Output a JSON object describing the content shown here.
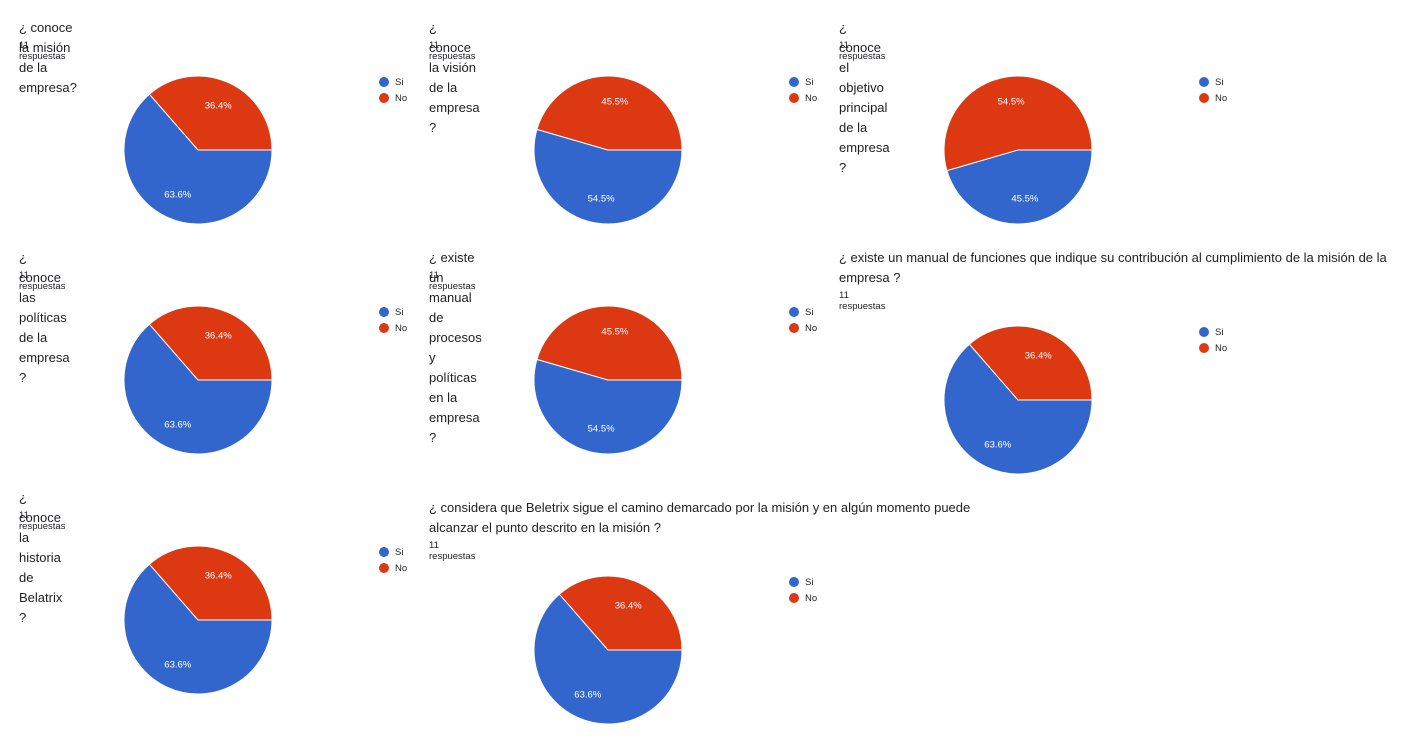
{
  "response_label": "11 respuestas",
  "colors": {
    "si": "#3366cc",
    "no": "#dc3912"
  },
  "chart_data": [
    {
      "type": "pie",
      "title": "¿ conoce la misión de la empresa?",
      "response_count": "11 respuestas",
      "categories": [
        "Si",
        "No"
      ],
      "values": [
        63.6,
        36.4
      ],
      "labels": [
        "63.6%",
        "36.4%"
      ],
      "legend": "right"
    },
    {
      "type": "pie",
      "title": "¿ conoce la visión de la empresa ?",
      "response_count": "11 respuestas",
      "categories": [
        "Si",
        "No"
      ],
      "values": [
        54.5,
        45.5
      ],
      "labels": [
        "54.5%",
        "45.5%"
      ],
      "legend": "right"
    },
    {
      "type": "pie",
      "title": "¿ conoce el objetivo principal de la empresa ?",
      "response_count": "11 respuestas",
      "categories": [
        "Si",
        "No"
      ],
      "values": [
        45.5,
        54.5
      ],
      "labels": [
        "45.5%",
        "54.5%"
      ],
      "legend": "right"
    },
    {
      "type": "pie",
      "title": "¿ conoce las políticas de la empresa ?",
      "response_count": "11 respuestas",
      "categories": [
        "Si",
        "No"
      ],
      "values": [
        63.6,
        36.4
      ],
      "labels": [
        "63.6%",
        "36.4%"
      ],
      "legend": "right"
    },
    {
      "type": "pie",
      "title": "¿ existe un manual de procesos y políticas en la empresa ?",
      "response_count": "11 respuestas",
      "categories": [
        "Si",
        "No"
      ],
      "values": [
        54.5,
        45.5
      ],
      "labels": [
        "54.5%",
        "45.5%"
      ],
      "legend": "right"
    },
    {
      "type": "pie",
      "title": "¿ existe un manual de funciones que indique su contribución al cumplimiento de la misión de la empresa ?",
      "response_count": "11 respuestas",
      "categories": [
        "Si",
        "No"
      ],
      "values": [
        63.6,
        36.4
      ],
      "labels": [
        "63.6%",
        "36.4%"
      ],
      "legend": "right"
    },
    {
      "type": "pie",
      "title": "¿ conoce la historia de Belatrix ?",
      "response_count": "11 respuestas",
      "categories": [
        "Si",
        "No"
      ],
      "values": [
        63.6,
        36.4
      ],
      "labels": [
        "63.6%",
        "36.4%"
      ],
      "legend": "right"
    },
    {
      "type": "pie",
      "title": "¿ considera que Beletrix sigue el camino demarcado por la misión y en  algún momento puede alcanzar el punto descrito en la misión  ?",
      "response_count": "11 respuestas",
      "categories": [
        "Si",
        "No"
      ],
      "values": [
        63.6,
        36.4
      ],
      "labels": [
        "63.6%",
        "36.4%"
      ],
      "legend": "right"
    }
  ]
}
